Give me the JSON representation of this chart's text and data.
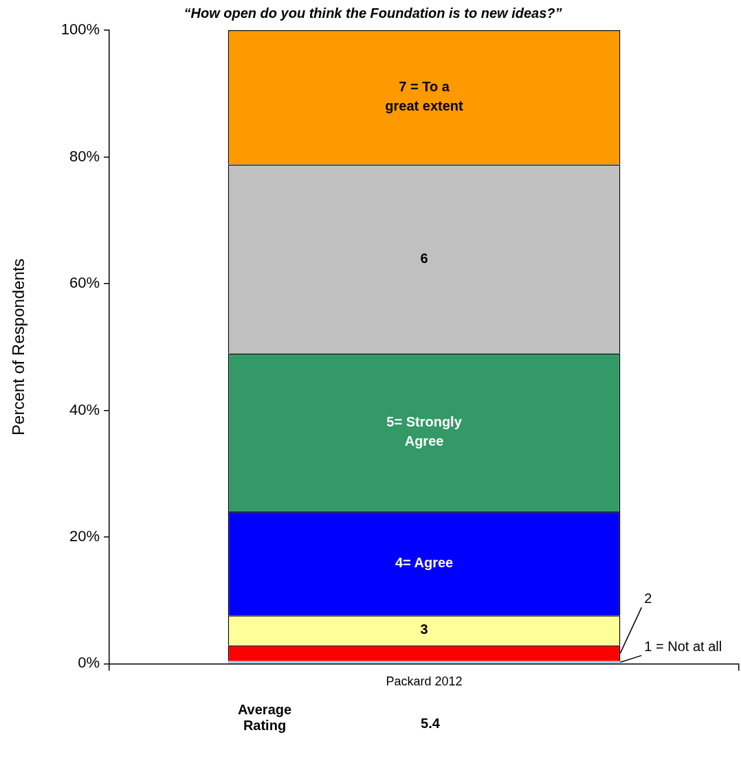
{
  "chart_data": {
    "type": "bar",
    "stacked": true,
    "title": "“How open do you think the Foundation is to new ideas?”",
    "ylabel": "Percent of Respondents",
    "categories": [
      "Packard 2012"
    ],
    "series": [
      {
        "name": "1 = Not at all",
        "color": "#99ccff",
        "values": [
          0.4
        ]
      },
      {
        "name": "2",
        "color": "#ff0000",
        "values": [
          2.5
        ]
      },
      {
        "name": "3",
        "color": "#ffff99",
        "values": [
          4.7
        ]
      },
      {
        "name": "4= Agree",
        "color": "#0000ff",
        "values": [
          16.4
        ]
      },
      {
        "name": "5= Strongly Agree",
        "color": "#339966",
        "values": [
          25.0
        ]
      },
      {
        "name": "6",
        "color": "#c0c0c0",
        "values": [
          29.8
        ]
      },
      {
        "name": "7 = To a great extent",
        "color": "#ff9900",
        "values": [
          21.2
        ]
      }
    ],
    "ylim": [
      0,
      100
    ],
    "yticks": [
      {
        "value": 0,
        "label": "0%"
      },
      {
        "value": 20,
        "label": "20%"
      },
      {
        "value": 40,
        "label": "40%"
      },
      {
        "value": 60,
        "label": "60%"
      },
      {
        "value": 80,
        "label": "80%"
      },
      {
        "value": 100,
        "label": "100%"
      }
    ],
    "grid": false,
    "legend": false,
    "annotations": [
      "Average Rating",
      "5.4"
    ]
  }
}
